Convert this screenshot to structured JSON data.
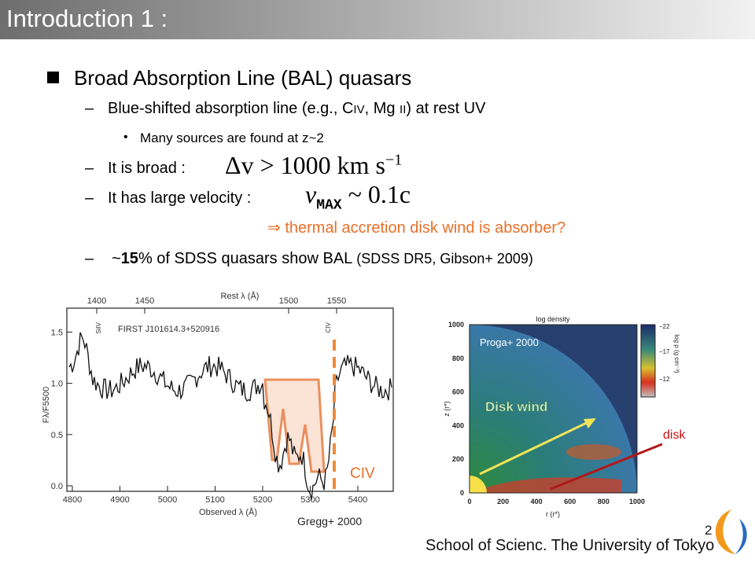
{
  "title": "Introduction 1 :",
  "heading": "Broad Absorption Line (BAL) quasars",
  "items": [
    {
      "parts": [
        "Blue-shifted absorption line (e.g., C",
        "IV",
        ", Mg ",
        "II",
        ") at rest UV"
      ]
    },
    {
      "parts": [
        "Many sources are found at z~2"
      ]
    },
    {
      "parts": [
        "It is broad : "
      ],
      "math": [
        "Δv > 1000 km s",
        "−1"
      ]
    },
    {
      "parts": [
        "It has large velocity : "
      ],
      "math": [
        "v",
        "MAX",
        " ~ 0.1c"
      ]
    },
    {
      "parts": [
        "⇒ thermal accretion disk wind is absorber?"
      ]
    },
    {
      "parts": [
        "~",
        "15",
        "% of SDSS quasars show BAL",
        " (SDSS DR5, Gibson+ 2009)"
      ]
    }
  ],
  "figure_left": {
    "top_label": "Rest λ (Å)",
    "top_ticks": [
      "1400",
      "1450",
      "1500",
      "1550"
    ],
    "x_ticks": [
      "4800",
      "4900",
      "5000",
      "5100",
      "5200",
      "5300",
      "5400"
    ],
    "x_label": "Observed λ (Å)",
    "y_ticks": [
      "0.0",
      "0.5",
      "1.0",
      "1.5"
    ],
    "y_label": "Fλ/F5500",
    "object": "FIRST J101614.3+520916",
    "line_labels": [
      "SiIV",
      "CIV"
    ],
    "annotation": "CIV",
    "credit": "Gregg+ 2000"
  },
  "figure_right": {
    "title": "log density",
    "x_ticks": [
      "0",
      "200",
      "400",
      "600",
      "800",
      "1000"
    ],
    "y_ticks": [
      "0",
      "200",
      "400",
      "600",
      "800",
      "1000"
    ],
    "x_label": "r (r*)",
    "y_label": "z (r*)",
    "colorbar_ticks": [
      "−22",
      "−17",
      "−12"
    ],
    "colorbar_label": "log ρ (g cm⁻³)",
    "credit": "Proga+ 2000",
    "wind_label": "Disk wind",
    "disk_label": "disk"
  },
  "page_number": "2",
  "footer": "School of Scienc. The University of Tokyo"
}
